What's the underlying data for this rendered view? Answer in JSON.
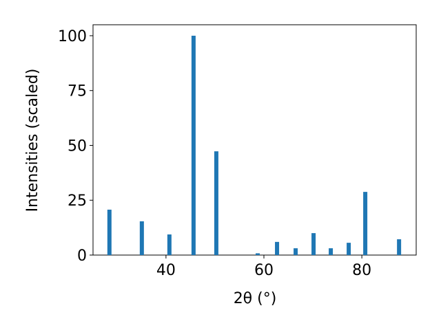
{
  "chart_data": {
    "type": "bar",
    "x_label": "2θ (°)",
    "y_label": "Intensities (scaled)",
    "x": [
      28.45,
      35.07,
      40.7,
      45.63,
      50.28,
      58.73,
      62.68,
      66.48,
      70.14,
      73.66,
      77.32,
      80.7,
      87.6
    ],
    "values": [
      20.7,
      15.4,
      9.4,
      100,
      47.3,
      0.8,
      6.0,
      3.1,
      10.0,
      3.1,
      5.6,
      28.8,
      7.2
    ],
    "color": "#1f77b4",
    "xlim": [
      25.1,
      91.1
    ],
    "xticks": [
      40,
      60,
      80
    ],
    "ylim": [
      0,
      105
    ],
    "yticks": [
      0,
      25,
      50,
      75,
      100
    ]
  }
}
